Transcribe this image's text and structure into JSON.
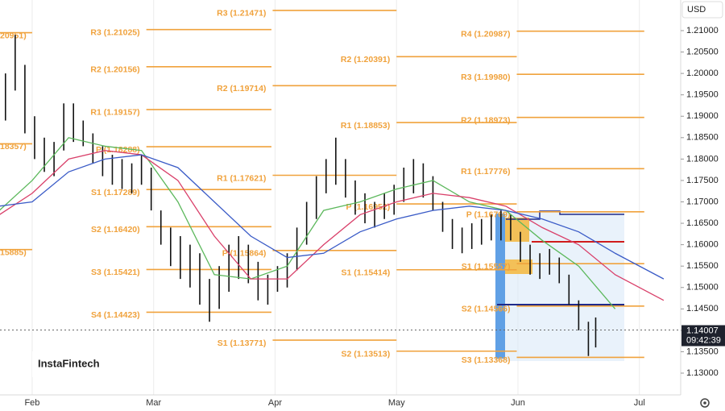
{
  "chart_data": {
    "type": "ohlc",
    "currency": "USD",
    "brand": "InstaFintech",
    "current_price": {
      "value": 1.14007,
      "label": "1.14007"
    },
    "current_time": "09:42:39",
    "ylim": [
      1.12492,
      1.21715
    ],
    "xlim": [
      -0.265,
      5.34
    ],
    "yticks": [
      {
        "value": 1.13,
        "label": "1.13000"
      },
      {
        "value": 1.135,
        "label": "1.13500"
      },
      {
        "value": 1.14,
        "label": "1.14000"
      },
      {
        "value": 1.145,
        "label": "1.14500"
      },
      {
        "value": 1.15,
        "label": "1.15000"
      },
      {
        "value": 1.155,
        "label": "1.15500"
      },
      {
        "value": 1.16,
        "label": "1.16000"
      },
      {
        "value": 1.165,
        "label": "1.16500"
      },
      {
        "value": 1.17,
        "label": "1.17000"
      },
      {
        "value": 1.175,
        "label": "1.17500"
      },
      {
        "value": 1.18,
        "label": "1.18000"
      },
      {
        "value": 1.185,
        "label": "1.18500"
      },
      {
        "value": 1.19,
        "label": "1.19000"
      },
      {
        "value": 1.195,
        "label": "1.19500"
      },
      {
        "value": 1.2,
        "label": "1.20000"
      },
      {
        "value": 1.205,
        "label": "1.20500"
      },
      {
        "value": 1.21,
        "label": "1.21000"
      }
    ],
    "xticks": [
      {
        "value": 0,
        "label": "Feb"
      },
      {
        "value": 1,
        "label": "Mar"
      },
      {
        "value": 2,
        "label": "Apr"
      },
      {
        "value": 3,
        "label": "May"
      },
      {
        "value": 4,
        "label": "Jun"
      },
      {
        "value": 5,
        "label": "Jul"
      }
    ],
    "pivot_color": "#f0a23c",
    "pivots": [
      {
        "x": [
          -0.265,
          0
        ],
        "levels": [
          {
            "value": 1.20951,
            "label": "20951)"
          },
          {
            "value": 1.18357,
            "label": "18357)"
          },
          {
            "value": 1.15885,
            "label": "15885)"
          }
        ]
      },
      {
        "x": [
          0.94,
          1.97
        ],
        "levels": [
          {
            "value": 1.21025,
            "label": "R3 (1.21025)"
          },
          {
            "value": 1.20156,
            "label": "R2 (1.20156)"
          },
          {
            "value": 1.19157,
            "label": "R1 (1.19157)"
          },
          {
            "value": 1.18288,
            "label": "P (1.18288)"
          },
          {
            "value": 1.17289,
            "label": "S1 (1.17289)"
          },
          {
            "value": 1.1642,
            "label": "S2 (1.16420)"
          },
          {
            "value": 1.15421,
            "label": "S3 (1.15421)"
          },
          {
            "value": 1.14423,
            "label": "S4 (1.14423)"
          }
        ]
      },
      {
        "x": [
          1.98,
          3.0
        ],
        "levels": [
          {
            "value": 1.21471,
            "label": "R3 (1.21471)"
          },
          {
            "value": 1.19714,
            "label": "R2 (1.19714)"
          },
          {
            "value": 1.17621,
            "label": "R1 (1.17621)"
          },
          {
            "value": 1.15864,
            "label": "P (1.15864)"
          },
          {
            "value": 1.13771,
            "label": "S1 (1.13771)"
          }
        ]
      },
      {
        "x": [
          3.0,
          3.99
        ],
        "levels": [
          {
            "value": 1.20391,
            "label": "R2 (1.20391)"
          },
          {
            "value": 1.18853,
            "label": "R1 (1.18853)"
          },
          {
            "value": 1.16952,
            "label": "P (1.16952)"
          },
          {
            "value": 1.15414,
            "label": "S1 (1.15414)"
          },
          {
            "value": 1.13513,
            "label": "S2 (1.13513)"
          }
        ]
      },
      {
        "x": [
          3.99,
          5.04
        ],
        "levels": [
          {
            "value": 1.20987,
            "label": "R4 (1.20987)"
          },
          {
            "value": 1.1998,
            "label": "R3 (1.19980)"
          },
          {
            "value": 1.18973,
            "label": "R2 (1.18973)"
          },
          {
            "value": 1.17776,
            "label": "R1 (1.17776)"
          },
          {
            "value": 1.16769,
            "label": "P (1.16769)"
          },
          {
            "value": 1.15557,
            "label": "S1 (1.15557)"
          },
          {
            "value": 1.14566,
            "label": "S2 (1.14566)"
          },
          {
            "value": 1.13368,
            "label": "S3 (1.13368)"
          }
        ]
      }
    ],
    "bars": {
      "color": "#111111",
      "x": [
        -0.22,
        -0.14,
        -0.06,
        0.02,
        0.1,
        0.18,
        0.26,
        0.34,
        0.42,
        0.5,
        0.58,
        0.66,
        0.74,
        0.82,
        0.9,
        0.98,
        1.06,
        1.14,
        1.22,
        1.3,
        1.38,
        1.46,
        1.54,
        1.62,
        1.7,
        1.78,
        1.86,
        1.94,
        2.02,
        2.1,
        2.18,
        2.26,
        2.34,
        2.42,
        2.5,
        2.58,
        2.66,
        2.74,
        2.82,
        2.9,
        2.98,
        3.06,
        3.14,
        3.22,
        3.3,
        3.38,
        3.46,
        3.54,
        3.62,
        3.7,
        3.78,
        3.86,
        3.94,
        4.02,
        4.1,
        4.18,
        4.26,
        4.34,
        4.42,
        4.5,
        4.58,
        4.64
      ],
      "highs": [
        1.2,
        1.209,
        1.202,
        1.19,
        1.185,
        1.184,
        1.193,
        1.193,
        1.189,
        1.186,
        1.183,
        1.181,
        1.18,
        1.179,
        1.181,
        1.178,
        1.168,
        1.164,
        1.162,
        1.16,
        1.158,
        1.152,
        1.155,
        1.16,
        1.162,
        1.16,
        1.156,
        1.153,
        1.155,
        1.158,
        1.164,
        1.17,
        1.176,
        1.18,
        1.185,
        1.18,
        1.175,
        1.172,
        1.17,
        1.172,
        1.174,
        1.178,
        1.18,
        1.179,
        1.176,
        1.17,
        1.166,
        1.164,
        1.165,
        1.166,
        1.167,
        1.168,
        1.167,
        1.163,
        1.16,
        1.158,
        1.159,
        1.157,
        1.153,
        1.147,
        1.142,
        1.143
      ],
      "lows": [
        1.189,
        1.196,
        1.186,
        1.18,
        1.177,
        1.176,
        1.182,
        1.184,
        1.183,
        1.179,
        1.176,
        1.174,
        1.173,
        1.172,
        1.174,
        1.168,
        1.16,
        1.155,
        1.152,
        1.15,
        1.146,
        1.142,
        1.145,
        1.149,
        1.152,
        1.151,
        1.147,
        1.146,
        1.149,
        1.15,
        1.154,
        1.16,
        1.166,
        1.172,
        1.174,
        1.171,
        1.167,
        1.165,
        1.164,
        1.166,
        1.167,
        1.17,
        1.172,
        1.171,
        1.168,
        1.163,
        1.159,
        1.158,
        1.159,
        1.16,
        1.161,
        1.161,
        1.161,
        1.156,
        1.153,
        1.152,
        1.153,
        1.151,
        1.146,
        1.14,
        1.134,
        1.136
      ]
    },
    "ma_x": [
      -0.27,
      0,
      0.3,
      0.6,
      0.9,
      1.2,
      1.5,
      1.8,
      2.1,
      2.4,
      2.7,
      3.0,
      3.3,
      3.6,
      3.9,
      4.2,
      4.5,
      4.8,
      5.2
    ],
    "series": [
      {
        "color": "#5cb85c",
        "values": [
          1.168,
          1.175,
          1.185,
          1.183,
          1.182,
          1.17,
          1.153,
          1.152,
          1.155,
          1.168,
          1.17,
          1.173,
          1.175,
          1.17,
          1.168,
          1.161,
          1.155,
          1.145,
          null
        ]
      },
      {
        "color": "#d9406a",
        "values": [
          1.167,
          1.172,
          1.18,
          1.182,
          1.181,
          1.175,
          1.162,
          1.152,
          1.152,
          1.16,
          1.167,
          1.17,
          1.172,
          1.171,
          1.169,
          1.164,
          1.16,
          1.153,
          1.147
        ]
      },
      {
        "color": "#3a5bc7",
        "values": [
          1.169,
          1.17,
          1.177,
          1.18,
          1.181,
          1.178,
          1.17,
          1.162,
          1.157,
          1.158,
          1.163,
          1.166,
          1.168,
          1.169,
          1.168,
          1.166,
          1.163,
          1.158,
          1.152
        ]
      }
    ]
  }
}
